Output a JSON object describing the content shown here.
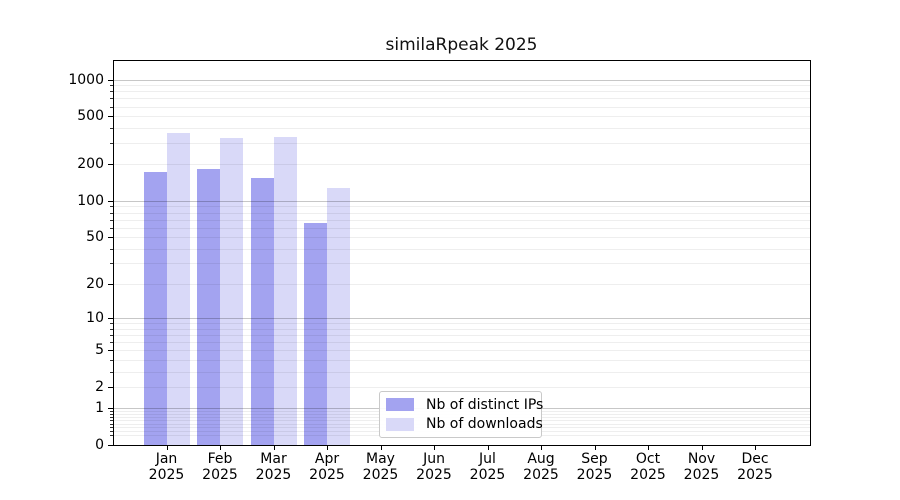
{
  "chart_data": {
    "type": "bar",
    "title": "similaRpeak 2025",
    "scale": "log1p",
    "grid": "horizontal",
    "legend_position": "lower-center",
    "year": "2025",
    "categories": [
      "Jan",
      "Feb",
      "Mar",
      "Apr",
      "May",
      "Jun",
      "Jul",
      "Aug",
      "Sep",
      "Oct",
      "Nov",
      "Dec"
    ],
    "series": [
      {
        "name": "Nb of distinct IPs",
        "color": "#a3a3f0",
        "values": [
          174,
          185,
          155,
          65,
          0,
          0,
          0,
          0,
          0,
          0,
          0,
          0
        ]
      },
      {
        "name": "Nb of downloads",
        "color": "#d9d9f8",
        "values": [
          365,
          330,
          340,
          129,
          0,
          0,
          0,
          0,
          0,
          0,
          0,
          0
        ]
      }
    ],
    "y_ticks": [
      1000,
      500,
      200,
      100,
      50,
      20,
      10,
      5,
      2,
      1,
      0
    ],
    "ylim": [
      0,
      1450
    ],
    "colors": {
      "major_grid": "#c8c8c8",
      "minor_grid": "#ececec",
      "spine": "#000000",
      "text": "#000000"
    }
  }
}
